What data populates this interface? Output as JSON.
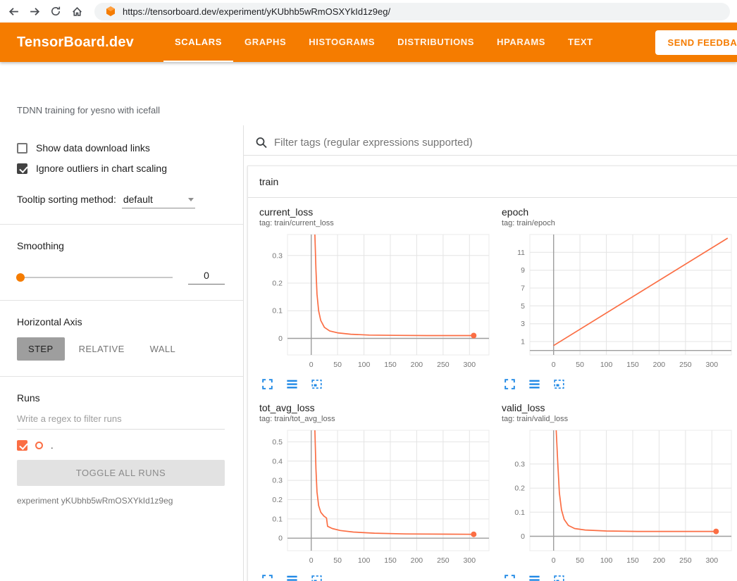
{
  "browser": {
    "url": "https://tensorboard.dev/experiment/yKUbhb5wRmOSXYkId1z9eg/"
  },
  "header": {
    "brand": "TensorBoard.dev",
    "tabs": [
      {
        "label": "SCALARS",
        "active": true
      },
      {
        "label": "GRAPHS",
        "active": false
      },
      {
        "label": "HISTOGRAMS",
        "active": false
      },
      {
        "label": "DISTRIBUTIONS",
        "active": false
      },
      {
        "label": "HPARAMS",
        "active": false
      },
      {
        "label": "TEXT",
        "active": false
      }
    ],
    "feedback_button": "SEND FEEDBACK"
  },
  "experiment_title": "TDNN training for yesno with icefall",
  "sidebar": {
    "checkbox_download": {
      "label": "Show data download links",
      "checked": false
    },
    "checkbox_outliers": {
      "label": "Ignore outliers in chart scaling",
      "checked": true
    },
    "tooltip_sorting": {
      "label": "Tooltip sorting method:",
      "value": "default"
    },
    "smoothing": {
      "label": "Smoothing",
      "value": "0"
    },
    "horizontal_axis": {
      "label": "Horizontal Axis",
      "options": [
        "STEP",
        "RELATIVE",
        "WALL"
      ],
      "selected": "STEP"
    },
    "runs": {
      "label": "Runs",
      "filter_placeholder": "Write a regex to filter runs",
      "run_label": ".",
      "toggle_button": "TOGGLE ALL RUNS",
      "caption": "experiment yKUbhb5wRmOSXYkId1z9eg"
    }
  },
  "main": {
    "filter_placeholder": "Filter tags (regular expressions supported)",
    "section_title": "train"
  },
  "colors": {
    "header_orange": "#f57c00",
    "run_color": "#fb6e44",
    "icon_blue": "#1e88e5"
  },
  "chart_data": [
    {
      "type": "line",
      "title": "current_loss",
      "tag": "tag: train/current_loss",
      "xlabel": "step",
      "xlim": [
        -45,
        337
      ],
      "ylim": [
        -0.06,
        0.376
      ],
      "xticks": [
        0,
        50,
        100,
        150,
        200,
        250,
        300
      ],
      "yticks": [
        0,
        0.1,
        0.2,
        0.3
      ],
      "grid": true,
      "color": "#fb6e44",
      "end_dot": true,
      "points": [
        [
          7,
          0.376
        ],
        [
          9,
          0.25
        ],
        [
          11,
          0.16
        ],
        [
          14,
          0.1
        ],
        [
          18,
          0.065
        ],
        [
          25,
          0.04
        ],
        [
          35,
          0.027
        ],
        [
          50,
          0.02
        ],
        [
          75,
          0.015
        ],
        [
          110,
          0.012
        ],
        [
          160,
          0.011
        ],
        [
          220,
          0.01
        ],
        [
          308,
          0.01
        ]
      ]
    },
    {
      "type": "line",
      "title": "epoch",
      "tag": "tag: train/epoch",
      "xlabel": "step",
      "xlim": [
        -45,
        337
      ],
      "ylim": [
        -0.5,
        13
      ],
      "xticks": [
        0,
        50,
        100,
        150,
        200,
        250,
        300
      ],
      "yticks": [
        1,
        3,
        5,
        7,
        9,
        11
      ],
      "grid": true,
      "color": "#fb6e44",
      "end_dot": false,
      "points": [
        [
          0,
          0.55
        ],
        [
          330,
          12.6
        ]
      ]
    },
    {
      "type": "line",
      "title": "tot_avg_loss",
      "tag": "tag: train/tot_avg_loss",
      "xlabel": "step",
      "xlim": [
        -45,
        337
      ],
      "ylim": [
        -0.065,
        0.56
      ],
      "xticks": [
        0,
        50,
        100,
        150,
        200,
        250,
        300
      ],
      "yticks": [
        0,
        0.1,
        0.2,
        0.3,
        0.4,
        0.5
      ],
      "grid": true,
      "color": "#fb6e44",
      "end_dot": true,
      "points": [
        [
          7,
          0.56
        ],
        [
          9,
          0.36
        ],
        [
          11,
          0.24
        ],
        [
          14,
          0.17
        ],
        [
          18,
          0.135
        ],
        [
          24,
          0.115
        ],
        [
          29,
          0.105
        ],
        [
          31,
          0.062
        ],
        [
          40,
          0.05
        ],
        [
          55,
          0.04
        ],
        [
          80,
          0.032
        ],
        [
          120,
          0.026
        ],
        [
          180,
          0.022
        ],
        [
          308,
          0.02
        ]
      ]
    },
    {
      "type": "line",
      "title": "valid_loss",
      "tag": "tag: train/valid_loss",
      "xlabel": "step",
      "xlim": [
        -45,
        337
      ],
      "ylim": [
        -0.06,
        0.44
      ],
      "xticks": [
        0,
        50,
        100,
        150,
        200,
        250,
        300
      ],
      "yticks": [
        0,
        0.1,
        0.2,
        0.3
      ],
      "grid": true,
      "color": "#fb6e44",
      "end_dot": true,
      "points": [
        [
          5,
          0.44
        ],
        [
          8,
          0.3
        ],
        [
          11,
          0.18
        ],
        [
          15,
          0.11
        ],
        [
          20,
          0.07
        ],
        [
          28,
          0.045
        ],
        [
          40,
          0.032
        ],
        [
          60,
          0.026
        ],
        [
          100,
          0.022
        ],
        [
          160,
          0.02
        ],
        [
          308,
          0.02
        ]
      ]
    }
  ]
}
